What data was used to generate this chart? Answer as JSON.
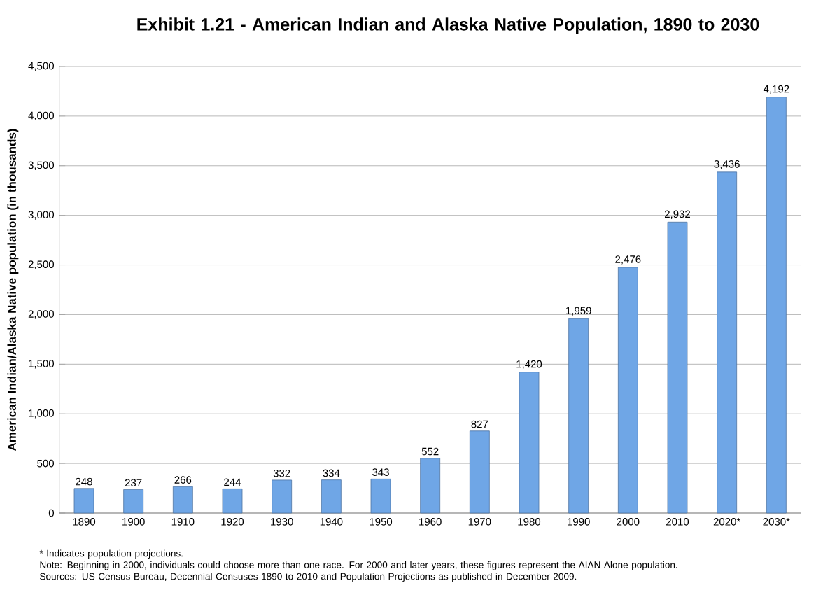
{
  "chart_data": {
    "type": "bar",
    "title": "Exhibit 1.21 - American Indian and Alaska Native Population, 1890 to 2030",
    "ylabel": "American Indian/Alaska Native population (in thousands)",
    "categories": [
      "1890",
      "1900",
      "1910",
      "1920",
      "1930",
      "1940",
      "1950",
      "1960",
      "1970",
      "1980",
      "1990",
      "2000",
      "2010",
      "2020*",
      "2030*"
    ],
    "values": [
      248,
      237,
      266,
      244,
      332,
      334,
      343,
      552,
      827,
      1420,
      1959,
      2476,
      2932,
      3436,
      4192
    ],
    "value_labels": [
      "248",
      "237",
      "266",
      "244",
      "332",
      "334",
      "343",
      "552",
      "827",
      "1,420",
      "1,959",
      "2,476",
      "2,932",
      "3,436",
      "4,192"
    ],
    "color": "#6fa6e6",
    "ylim": [
      0,
      4500
    ],
    "yticks": [
      0,
      500,
      {
        "value": 1000,
        "label": "1,000"
      },
      {
        "value": 1500,
        "label": "1,500"
      },
      {
        "value": 2000,
        "label": "2,000"
      },
      {
        "value": 2500,
        "label": "2,500"
      },
      {
        "value": 3000,
        "label": "3,000"
      },
      {
        "value": 3500,
        "label": "3,500"
      },
      {
        "value": 4000,
        "label": "4,000"
      },
      {
        "value": 4500,
        "label": "4,500"
      }
    ],
    "grid": "y",
    "annotations": [
      "* Indicates population projections.",
      "Note: Beginning in 2000, individuals could choose more than one race. For 2000 and later years, these figures represent the AIAN Alone population.",
      "Sources: US Census Bureau, Decennial Censuses 1890 to 2010 and Population Projections as published in December 2009."
    ]
  }
}
